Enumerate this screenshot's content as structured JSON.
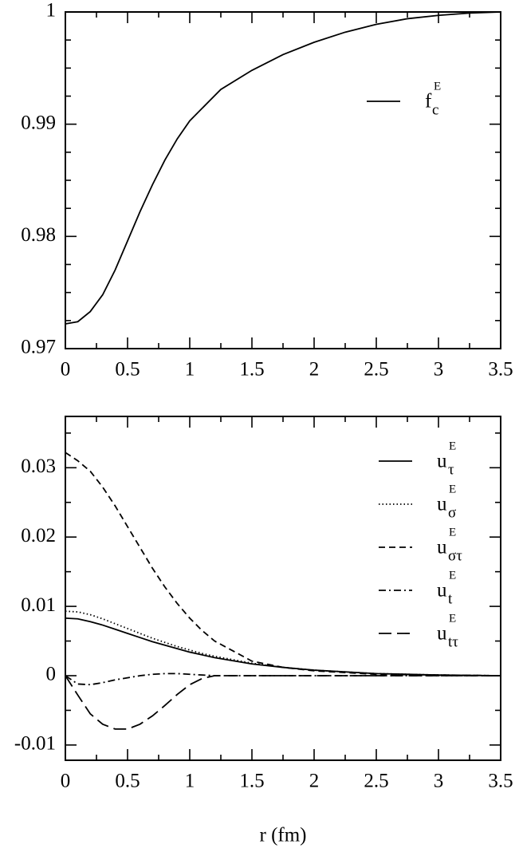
{
  "chart_data": [
    {
      "type": "line",
      "x": [
        0,
        0.1,
        0.2,
        0.3,
        0.4,
        0.5,
        0.6,
        0.7,
        0.8,
        0.9,
        1.0,
        1.25,
        1.5,
        1.75,
        2.0,
        2.25,
        2.5,
        2.75,
        3.0,
        3.25,
        3.5
      ],
      "series": [
        {
          "name": "f",
          "name_sub": "c",
          "name_sup": "E",
          "color": "#000000",
          "dash": "solid",
          "values": [
            0.9722,
            0.9724,
            0.9733,
            0.9748,
            0.977,
            0.9796,
            0.9822,
            0.9846,
            0.9868,
            0.9887,
            0.9903,
            0.9931,
            0.9948,
            0.9962,
            0.9973,
            0.9982,
            0.9989,
            0.9994,
            0.9997,
            0.9999,
            1.0
          ]
        }
      ],
      "xlim": [
        0,
        3.5
      ],
      "ylim": [
        0.97,
        1.0
      ],
      "xticks": [
        0,
        0.5,
        1,
        1.5,
        2,
        2.5,
        3,
        3.5
      ],
      "yticks": [
        0.97,
        0.98,
        0.99,
        1
      ],
      "xminorticks": [
        0.25,
        0.75,
        1.25,
        1.75,
        2.25,
        2.75,
        3.25
      ],
      "yminorticks": [
        0.9725,
        0.975,
        0.9775,
        0.9825,
        0.985,
        0.9875,
        0.9925,
        0.995,
        0.9975
      ]
    },
    {
      "type": "line",
      "xlabel": "r (fm)",
      "x": [
        0,
        0.1,
        0.2,
        0.3,
        0.4,
        0.5,
        0.6,
        0.7,
        0.8,
        0.9,
        1.0,
        1.1,
        1.2,
        1.5,
        1.75,
        2.0,
        2.5,
        3.0,
        3.5
      ],
      "series": [
        {
          "name": "u",
          "name_sub": "τ",
          "name_sup": "E",
          "color": "#000000",
          "dash": "solid",
          "values": [
            0.0083,
            0.0082,
            0.0078,
            0.0073,
            0.0067,
            0.0061,
            0.0055,
            0.0049,
            0.0044,
            0.0039,
            0.0034,
            0.003,
            0.0026,
            0.0017,
            0.0012,
            0.0008,
            0.0003,
            0.0001,
            0
          ]
        },
        {
          "name": "u",
          "name_sub": "σ",
          "name_sup": "E",
          "color": "#000000",
          "dash": "dotted",
          "values": [
            0.0093,
            0.0092,
            0.0088,
            0.0082,
            0.0075,
            0.0068,
            0.0061,
            0.0054,
            0.0048,
            0.0042,
            0.0037,
            0.0032,
            0.0028,
            0.0018,
            0.0012,
            0.0008,
            0.0003,
            0.0001,
            0
          ]
        },
        {
          "name": "u",
          "name_sub": "στ",
          "name_sup": "E",
          "color": "#000000",
          "dash": "dashed",
          "values": [
            0.0322,
            0.031,
            0.0295,
            0.0272,
            0.0245,
            0.0215,
            0.0185,
            0.0155,
            0.0128,
            0.0104,
            0.0083,
            0.0065,
            0.005,
            0.0021,
            0.0012,
            0.0007,
            0.0002,
            0.0001,
            0
          ]
        },
        {
          "name": "u",
          "name_sub": "t",
          "name_sup": "E",
          "color": "#000000",
          "dash": "dashdot",
          "values": [
            0,
            -0.0012,
            -0.0013,
            -0.001,
            -0.0006,
            -0.0003,
            0,
            0.0002,
            0.0003,
            0.0003,
            0.0002,
            0.0001,
            0,
            0,
            0,
            0,
            0,
            0,
            0
          ]
        },
        {
          "name": "u",
          "name_sub": "tτ",
          "name_sup": "E",
          "color": "#000000",
          "dash": "longdash",
          "values": [
            0,
            -0.0028,
            -0.0055,
            -0.007,
            -0.0077,
            -0.0077,
            -0.007,
            -0.0058,
            -0.0043,
            -0.0027,
            -0.0013,
            -0.0004,
            0,
            0,
            0,
            0,
            0,
            0,
            0
          ]
        }
      ],
      "xlim": [
        0,
        3.5
      ],
      "ylim": [
        -0.0122,
        0.0374
      ],
      "xticks": [
        0,
        0.5,
        1,
        1.5,
        2,
        2.5,
        3,
        3.5
      ],
      "yticks": [
        -0.01,
        0,
        0.01,
        0.02,
        0.03
      ],
      "xminorticks": [
        0.25,
        0.75,
        1.25,
        1.75,
        2.25,
        2.75,
        3.25
      ],
      "yminorticks": [
        -0.005,
        0.005,
        0.015,
        0.025,
        0.035
      ]
    }
  ]
}
